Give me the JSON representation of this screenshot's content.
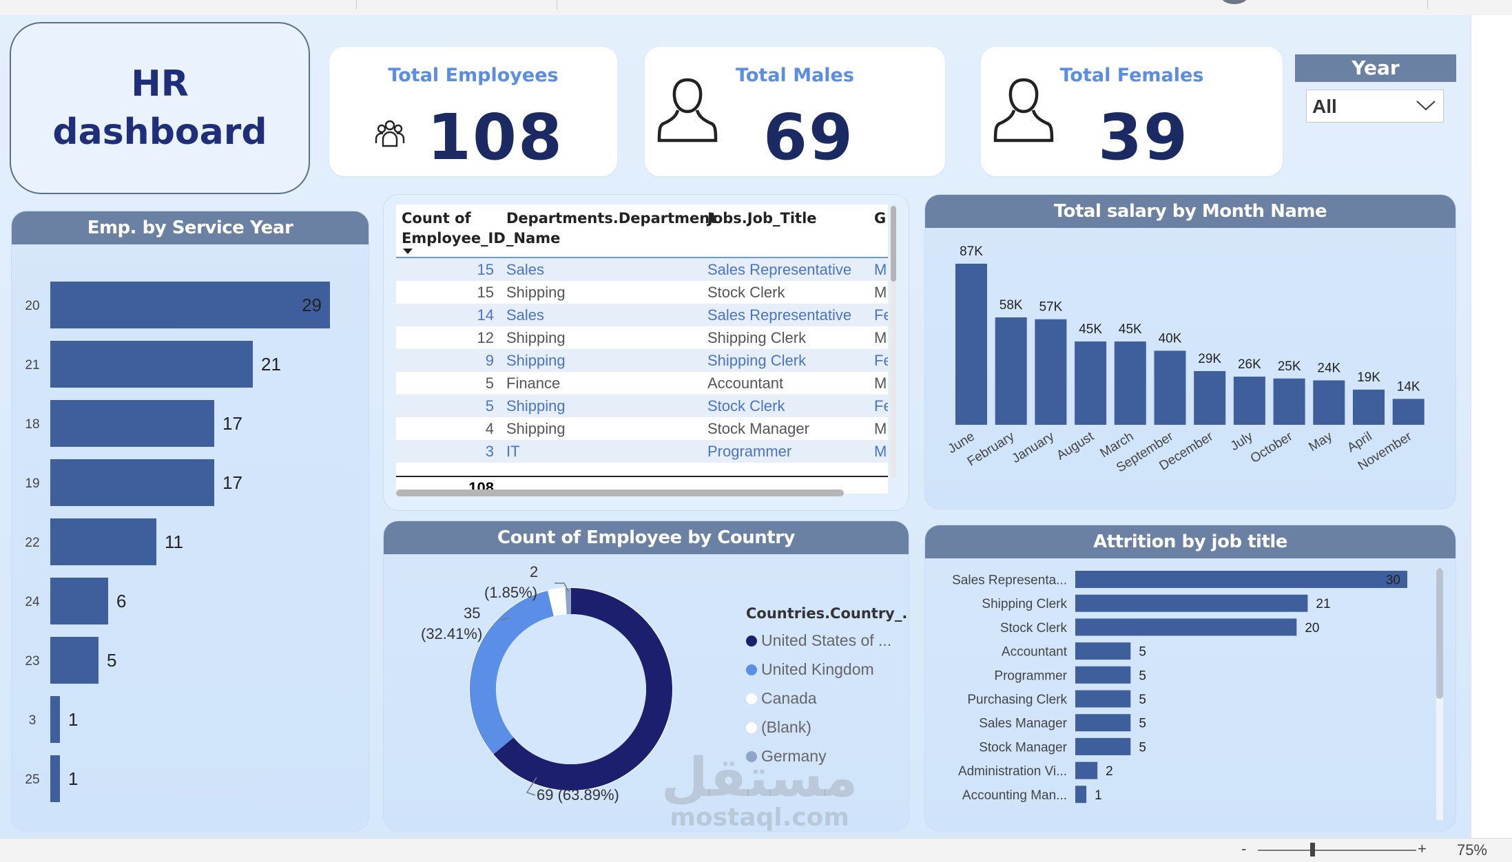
{
  "title": "HR\ndashboard",
  "kpis": {
    "total_employees": {
      "label": "Total Employees",
      "value": "108"
    },
    "total_males": {
      "label": "Total Males",
      "value": "69"
    },
    "total_females": {
      "label": "Total Females",
      "value": "39"
    }
  },
  "slicer": {
    "label": "Year",
    "value": "All"
  },
  "service_year_chart": {
    "title": "Emp. by Service Year",
    "chart_data": {
      "type": "bar",
      "orientation": "horizontal",
      "categories": [
        "20",
        "21",
        "18",
        "19",
        "22",
        "24",
        "23",
        "3",
        "25"
      ],
      "values": [
        29,
        21,
        17,
        17,
        11,
        6,
        5,
        1,
        1
      ]
    }
  },
  "table": {
    "headers": [
      "Count of\nEmployee_ID",
      "Departments.Department\n_Name",
      "Jobs.Job_Title",
      "G"
    ],
    "rows": [
      {
        "count": "15",
        "dept": "Sales",
        "job": "Sales Representative",
        "g": "M"
      },
      {
        "count": "15",
        "dept": "Shipping",
        "job": "Stock Clerk",
        "g": "M"
      },
      {
        "count": "14",
        "dept": "Sales",
        "job": "Sales Representative",
        "g": "Fe"
      },
      {
        "count": "12",
        "dept": "Shipping",
        "job": "Shipping Clerk",
        "g": "M"
      },
      {
        "count": "9",
        "dept": "Shipping",
        "job": "Shipping Clerk",
        "g": "Fe"
      },
      {
        "count": "5",
        "dept": "Finance",
        "job": "Accountant",
        "g": "M"
      },
      {
        "count": "5",
        "dept": "Shipping",
        "job": "Stock Clerk",
        "g": "Fe"
      },
      {
        "count": "4",
        "dept": "Shipping",
        "job": "Stock Manager",
        "g": "M"
      },
      {
        "count": "3",
        "dept": "IT",
        "job": "Programmer",
        "g": "M"
      }
    ],
    "total": "108"
  },
  "salary_chart": {
    "title": "Total salary by Month Name",
    "chart_data": {
      "type": "bar",
      "categories": [
        "June",
        "February",
        "January",
        "August",
        "March",
        "September",
        "December",
        "July",
        "October",
        "May",
        "April",
        "November"
      ],
      "values": [
        87000,
        58000,
        57000,
        45000,
        45000,
        40000,
        29000,
        26000,
        25000,
        24000,
        19000,
        14000
      ],
      "data_labels": [
        "87K",
        "58K",
        "57K",
        "45K",
        "45K",
        "40K",
        "29K",
        "26K",
        "25K",
        "24K",
        "19K",
        "14K"
      ]
    }
  },
  "country_chart": {
    "title": "Count of Employee by Country",
    "legend_title": "Countries.Country_...",
    "chart_data": {
      "type": "pie",
      "categories": [
        "United States of ...",
        "United Kingdom",
        "Canada",
        "(Blank)",
        "Germany"
      ],
      "values": [
        69,
        35,
        2,
        1,
        1
      ],
      "colors": [
        "#1c1e6e",
        "#5b8ee6",
        "#ffffff",
        "#ffffff",
        "#8ea4c8"
      ],
      "labels": {
        "united_states": "69 (63.89%)",
        "united_kingdom_count": "35",
        "united_kingdom_pct": "(32.41%)",
        "canada_count": "2",
        "canada_pct": "(1.85%)"
      }
    }
  },
  "attrition_chart": {
    "title": "Attrition by job title",
    "chart_data": {
      "type": "bar",
      "orientation": "horizontal",
      "categories": [
        "Sales Representa...",
        "Shipping Clerk",
        "Stock Clerk",
        "Accountant",
        "Programmer",
        "Purchasing Clerk",
        "Sales Manager",
        "Stock Manager",
        "Administration Vi...",
        "Accounting Man..."
      ],
      "values": [
        30,
        21,
        20,
        5,
        5,
        5,
        5,
        5,
        2,
        1
      ]
    }
  },
  "colors": {
    "bar": "#3e5f9c",
    "header": "#6b81a3",
    "title": "#1f2e7a"
  },
  "status": {
    "zoom": "75%",
    "minus": "-",
    "plus": "+"
  },
  "watermark": {
    "arabic": "مستقل",
    "latin": "mostaql.com"
  }
}
